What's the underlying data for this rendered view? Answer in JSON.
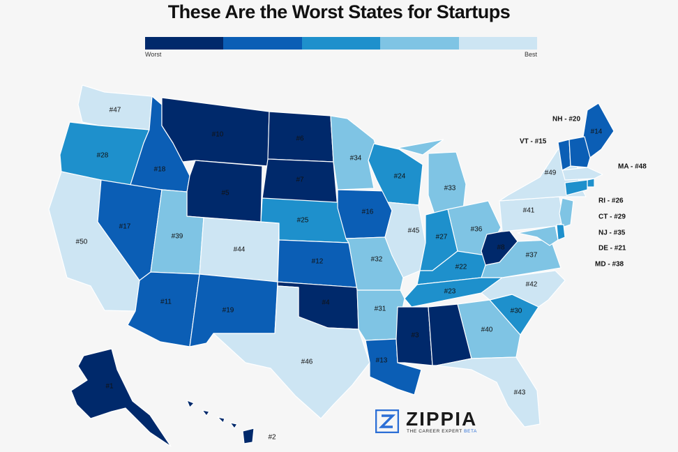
{
  "title": "These Are the Worst States for Startups",
  "legend": {
    "worst_label": "Worst",
    "best_label": "Best",
    "colors": [
      "#00296b",
      "#0b5eb5",
      "#1e90cc",
      "#7fc4e4",
      "#cde5f3"
    ]
  },
  "states": [
    {
      "id": "WA",
      "rank": "#47",
      "tier": 4
    },
    {
      "id": "OR",
      "rank": "#28",
      "tier": 2
    },
    {
      "id": "CA",
      "rank": "#50",
      "tier": 4
    },
    {
      "id": "ID",
      "rank": "#18",
      "tier": 1
    },
    {
      "id": "NV",
      "rank": "#17",
      "tier": 1
    },
    {
      "id": "MT",
      "rank": "#10",
      "tier": 0
    },
    {
      "id": "WY",
      "rank": "#5",
      "tier": 0
    },
    {
      "id": "UT",
      "rank": "#39",
      "tier": 3
    },
    {
      "id": "AZ",
      "rank": "#11",
      "tier": 1
    },
    {
      "id": "CO",
      "rank": "#44",
      "tier": 4
    },
    {
      "id": "NM",
      "rank": "#19",
      "tier": 1
    },
    {
      "id": "ND",
      "rank": "#6",
      "tier": 0
    },
    {
      "id": "SD",
      "rank": "#7",
      "tier": 0
    },
    {
      "id": "NE",
      "rank": "#25",
      "tier": 2
    },
    {
      "id": "KS",
      "rank": "#12",
      "tier": 1
    },
    {
      "id": "OK",
      "rank": "#4",
      "tier": 0
    },
    {
      "id": "TX",
      "rank": "#46",
      "tier": 4
    },
    {
      "id": "MN",
      "rank": "#34",
      "tier": 3
    },
    {
      "id": "IA",
      "rank": "#16",
      "tier": 1
    },
    {
      "id": "MO",
      "rank": "#32",
      "tier": 3
    },
    {
      "id": "AR",
      "rank": "#31",
      "tier": 3
    },
    {
      "id": "LA",
      "rank": "#13",
      "tier": 1
    },
    {
      "id": "WI",
      "rank": "#24",
      "tier": 2
    },
    {
      "id": "IL",
      "rank": "#45",
      "tier": 4
    },
    {
      "id": "MI",
      "rank": "#33",
      "tier": 3
    },
    {
      "id": "IN",
      "rank": "#27",
      "tier": 2
    },
    {
      "id": "OH",
      "rank": "#36",
      "tier": 3
    },
    {
      "id": "KY",
      "rank": "#22",
      "tier": 2
    },
    {
      "id": "TN",
      "rank": "#23",
      "tier": 2
    },
    {
      "id": "MS",
      "rank": "#3",
      "tier": 0
    },
    {
      "id": "AL",
      "rank": "#9",
      "tier": 0
    },
    {
      "id": "GA",
      "rank": "#40",
      "tier": 3
    },
    {
      "id": "FL",
      "rank": "#43",
      "tier": 4
    },
    {
      "id": "SC",
      "rank": "#30",
      "tier": 2
    },
    {
      "id": "NC",
      "rank": "#42",
      "tier": 4
    },
    {
      "id": "VA",
      "rank": "#37",
      "tier": 3
    },
    {
      "id": "WV",
      "rank": "#8",
      "tier": 0
    },
    {
      "id": "PA",
      "rank": "#41",
      "tier": 4
    },
    {
      "id": "NY",
      "rank": "#49",
      "tier": 4
    },
    {
      "id": "ME",
      "rank": "#14",
      "tier": 1
    },
    {
      "id": "AK",
      "rank": "#1",
      "tier": 0
    },
    {
      "id": "HI",
      "rank": "#2",
      "tier": 0
    },
    {
      "id": "VT",
      "rank": "",
      "tier": 1
    },
    {
      "id": "NH",
      "rank": "",
      "tier": 1
    },
    {
      "id": "MA",
      "rank": "",
      "tier": 4
    },
    {
      "id": "RI",
      "rank": "",
      "tier": 2
    },
    {
      "id": "CT",
      "rank": "",
      "tier": 2
    },
    {
      "id": "NJ",
      "rank": "",
      "tier": 3
    },
    {
      "id": "DE",
      "rank": "",
      "tier": 2
    },
    {
      "id": "MD",
      "rank": "",
      "tier": 3
    }
  ],
  "callouts": [
    {
      "id": "NH",
      "text": "NH - #20"
    },
    {
      "id": "VT",
      "text": "VT - #15"
    },
    {
      "id": "MA",
      "text": "MA - #48"
    },
    {
      "id": "RI",
      "text": "RI - #26"
    },
    {
      "id": "CT",
      "text": "CT - #29"
    },
    {
      "id": "NJ",
      "text": "NJ - #35"
    },
    {
      "id": "DE",
      "text": "DE - #21"
    },
    {
      "id": "MD",
      "text": "MD - #38"
    }
  ],
  "logo": {
    "name": "ZIPPIA",
    "tagline": "THE CAREER EXPERT",
    "beta": "BETA"
  }
}
